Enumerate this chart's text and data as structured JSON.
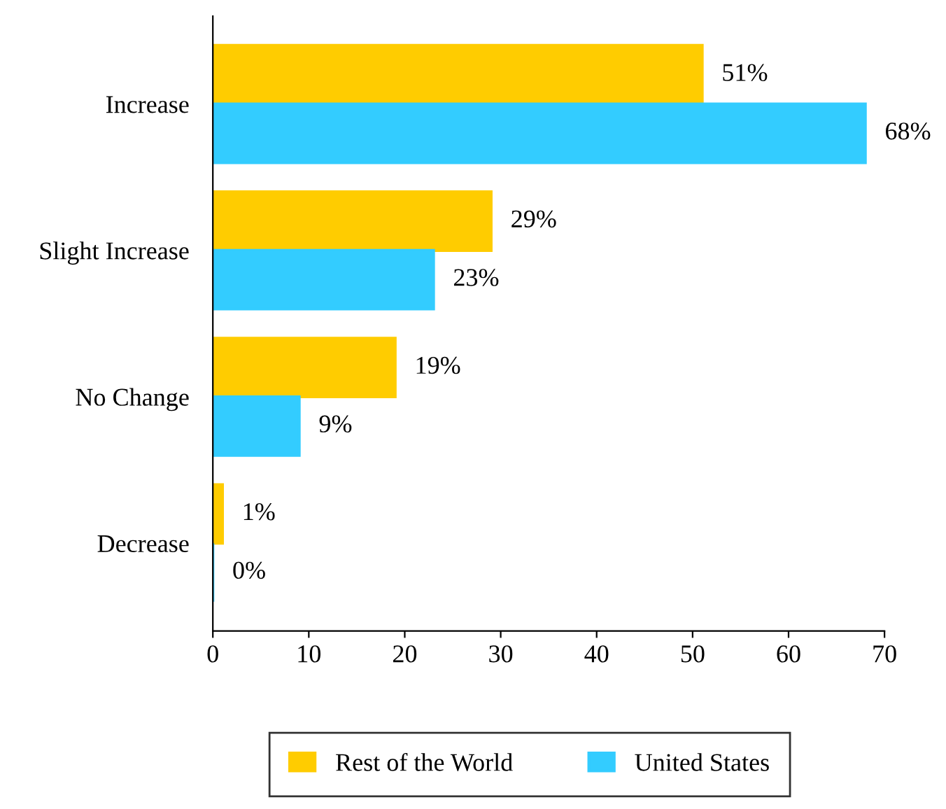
{
  "chart_data": {
    "type": "bar",
    "orientation": "horizontal",
    "categories": [
      "Increase",
      "Slight Increase",
      "No Change",
      "Decrease"
    ],
    "series": [
      {
        "name": "Rest of the World",
        "color": "#ffcc00",
        "values": [
          51,
          29,
          19,
          1
        ],
        "value_labels": [
          "51%",
          "29%",
          "19%",
          "1%"
        ]
      },
      {
        "name": "United States",
        "color": "#33ccff",
        "values": [
          68,
          23,
          9,
          0
        ],
        "value_labels": [
          "68%",
          "23%",
          "9%",
          "0%"
        ]
      }
    ],
    "xlim": [
      0,
      70
    ],
    "xticks": [
      0,
      10,
      20,
      30,
      40,
      50,
      60,
      70
    ],
    "grid": false,
    "legend": "bottom"
  }
}
